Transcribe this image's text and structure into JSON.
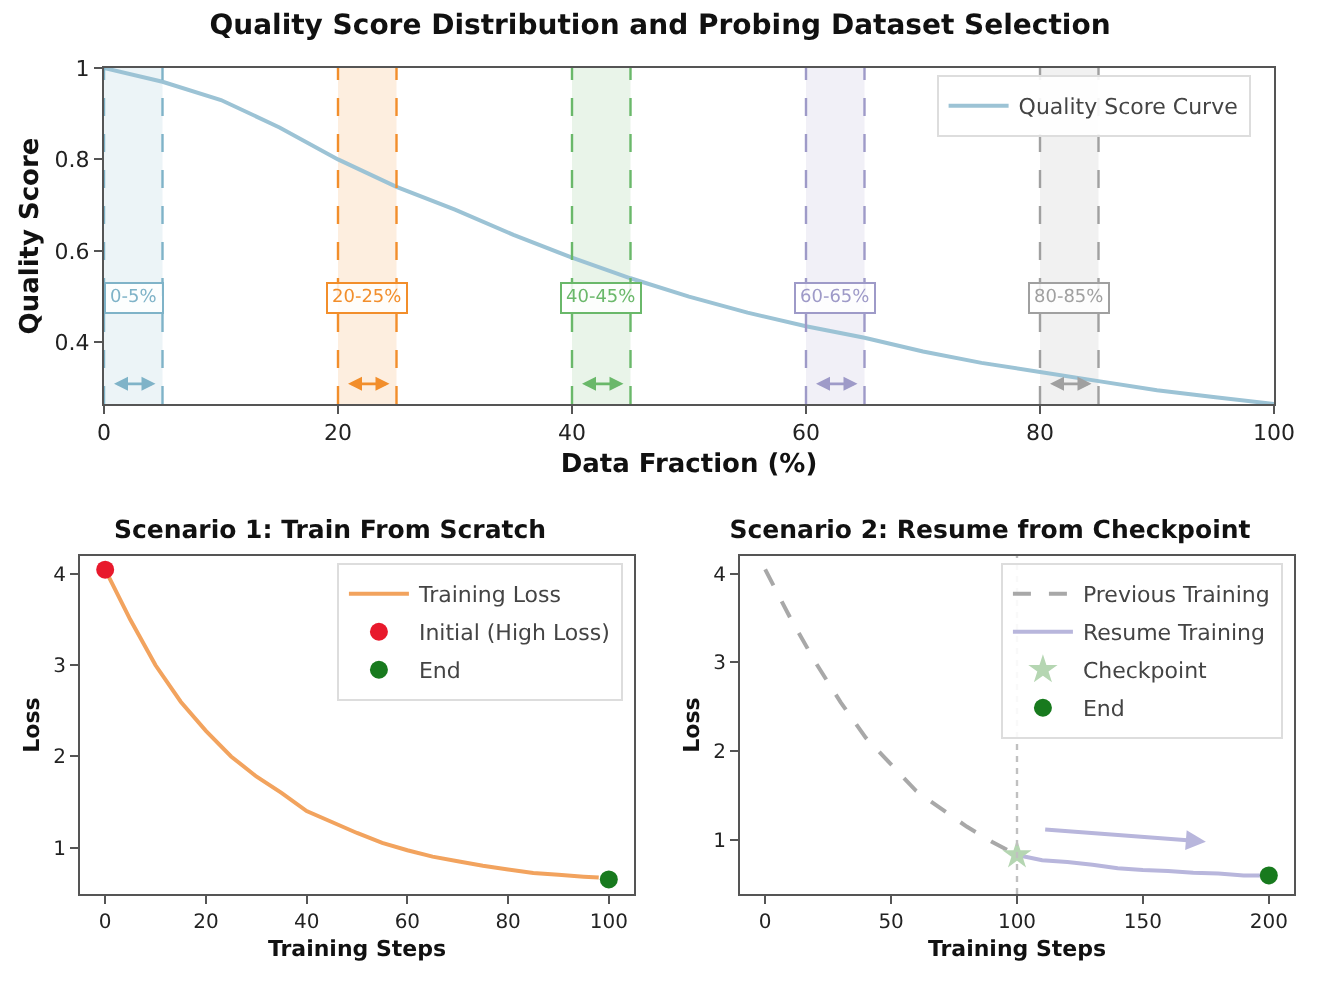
{
  "chart_data": [
    {
      "type": "line",
      "title": "Quality Score Distribution and Probing Dataset Selection",
      "xlabel": "Data Fraction (%)",
      "ylabel": "Quality Score",
      "xlim": [
        0,
        100
      ],
      "ylim": [
        0.265,
        1.0
      ],
      "xticks": [
        0,
        20,
        40,
        60,
        80,
        100
      ],
      "yticks": [
        0.4,
        0.6,
        0.8,
        1.0
      ],
      "grid": false,
      "legend": "top right",
      "series": [
        {
          "name": "Quality Score Curve",
          "color": "#9cc3d5",
          "line_style": "solid",
          "marker": "none",
          "x": [
            0,
            5,
            10,
            15,
            20,
            25,
            30,
            35,
            40,
            45,
            50,
            55,
            60,
            65,
            70,
            75,
            80,
            85,
            90,
            95,
            100
          ],
          "values": [
            1.0,
            0.97,
            0.93,
            0.87,
            0.8,
            0.74,
            0.69,
            0.635,
            0.585,
            0.54,
            0.5,
            0.465,
            0.435,
            0.41,
            0.38,
            0.355,
            0.335,
            0.315,
            0.295,
            0.28,
            0.265
          ]
        }
      ],
      "bands": [
        {
          "axis": "x",
          "from": 0,
          "to": 5,
          "label": "0-5%",
          "color": "#7fb3c8"
        },
        {
          "axis": "x",
          "from": 20,
          "to": 25,
          "label": "20-25%",
          "color": "#f28e2b"
        },
        {
          "axis": "x",
          "from": 40,
          "to": 45,
          "label": "40-45%",
          "color": "#6ab86a"
        },
        {
          "axis": "x",
          "from": 60,
          "to": 65,
          "label": "60-65%",
          "color": "#9e9ac8"
        },
        {
          "axis": "x",
          "from": 80,
          "to": 85,
          "label": "80-85%",
          "color": "#a0a0a0"
        }
      ],
      "ref_lines": [
        {
          "axis": "x",
          "value": 0,
          "color": "#7fb3c8",
          "line_style": "dashed"
        },
        {
          "axis": "x",
          "value": 5,
          "color": "#7fb3c8",
          "line_style": "dashed"
        },
        {
          "axis": "x",
          "value": 20,
          "color": "#f28e2b",
          "line_style": "dashed"
        },
        {
          "axis": "x",
          "value": 25,
          "color": "#f28e2b",
          "line_style": "dashed"
        },
        {
          "axis": "x",
          "value": 40,
          "color": "#6ab86a",
          "line_style": "dashed"
        },
        {
          "axis": "x",
          "value": 45,
          "color": "#6ab86a",
          "line_style": "dashed"
        },
        {
          "axis": "x",
          "value": 60,
          "color": "#9e9ac8",
          "line_style": "dashed"
        },
        {
          "axis": "x",
          "value": 65,
          "color": "#9e9ac8",
          "line_style": "dashed"
        },
        {
          "axis": "x",
          "value": 80,
          "color": "#a0a0a0",
          "line_style": "dashed"
        },
        {
          "axis": "x",
          "value": 85,
          "color": "#a0a0a0",
          "line_style": "dashed"
        }
      ]
    },
    {
      "type": "line",
      "title": "Scenario 1: Train From Scratch",
      "xlabel": "Training Steps",
      "ylabel": "Loss",
      "xlim": [
        -5,
        105
      ],
      "ylim": [
        0.49,
        4.2
      ],
      "xticks": [
        0,
        20,
        40,
        60,
        80,
        100
      ],
      "yticks": [
        1,
        2,
        3,
        4
      ],
      "grid": false,
      "legend": "top right",
      "series": [
        {
          "name": "Training Loss",
          "color": "#f2a35e",
          "line_style": "solid",
          "marker": "none",
          "x": [
            0,
            5,
            10,
            15,
            20,
            25,
            30,
            35,
            40,
            45,
            50,
            55,
            60,
            65,
            70,
            75,
            80,
            85,
            90,
            95,
            98
          ],
          "values": [
            4.05,
            3.5,
            3.0,
            2.6,
            2.28,
            2.0,
            1.78,
            1.6,
            1.4,
            1.28,
            1.16,
            1.05,
            0.97,
            0.9,
            0.85,
            0.8,
            0.76,
            0.72,
            0.7,
            0.68,
            0.67
          ]
        },
        {
          "type": "scatter",
          "name": "Initial (High Loss)",
          "color": "#e8192c",
          "marker": "circle",
          "x": [
            0
          ],
          "values": [
            4.05
          ]
        },
        {
          "type": "scatter",
          "name": "End",
          "color": "#187a1e",
          "marker": "circle",
          "x": [
            100
          ],
          "values": [
            0.65
          ]
        }
      ]
    },
    {
      "type": "line",
      "title": "Scenario 2: Resume from Checkpoint",
      "xlabel": "Training Steps",
      "ylabel": "Loss",
      "xlim": [
        -10,
        210
      ],
      "ylim": [
        0.39,
        4.2
      ],
      "xticks": [
        0,
        50,
        100,
        150,
        200
      ],
      "yticks": [
        1,
        2,
        3,
        4
      ],
      "grid": false,
      "legend": "top right",
      "series": [
        {
          "name": "Previous Training",
          "color": "#a8a8a8",
          "line_style": "dashed",
          "marker": "none",
          "x": [
            0,
            10,
            20,
            30,
            40,
            50,
            60,
            70,
            80,
            90,
            100
          ],
          "values": [
            4.05,
            3.5,
            3.0,
            2.55,
            2.15,
            1.85,
            1.55,
            1.35,
            1.15,
            0.98,
            0.83
          ]
        },
        {
          "name": "Resume Training",
          "color": "#b8b6dc",
          "line_style": "solid",
          "marker": "none",
          "x": [
            100,
            110,
            120,
            130,
            140,
            150,
            160,
            170,
            180,
            190,
            200
          ],
          "values": [
            0.83,
            0.77,
            0.75,
            0.72,
            0.68,
            0.66,
            0.65,
            0.63,
            0.62,
            0.6,
            0.6
          ]
        },
        {
          "type": "scatter",
          "name": "Checkpoint",
          "color": "#b5d6b2",
          "marker": "star",
          "x": [
            100
          ],
          "values": [
            0.83
          ]
        },
        {
          "type": "scatter",
          "name": "End",
          "color": "#187a1e",
          "marker": "circle",
          "x": [
            200
          ],
          "values": [
            0.6
          ]
        }
      ],
      "ref_lines": [
        {
          "axis": "x",
          "value": 100,
          "color": "#c0c0c0",
          "line_style": "dotted"
        }
      ]
    }
  ]
}
